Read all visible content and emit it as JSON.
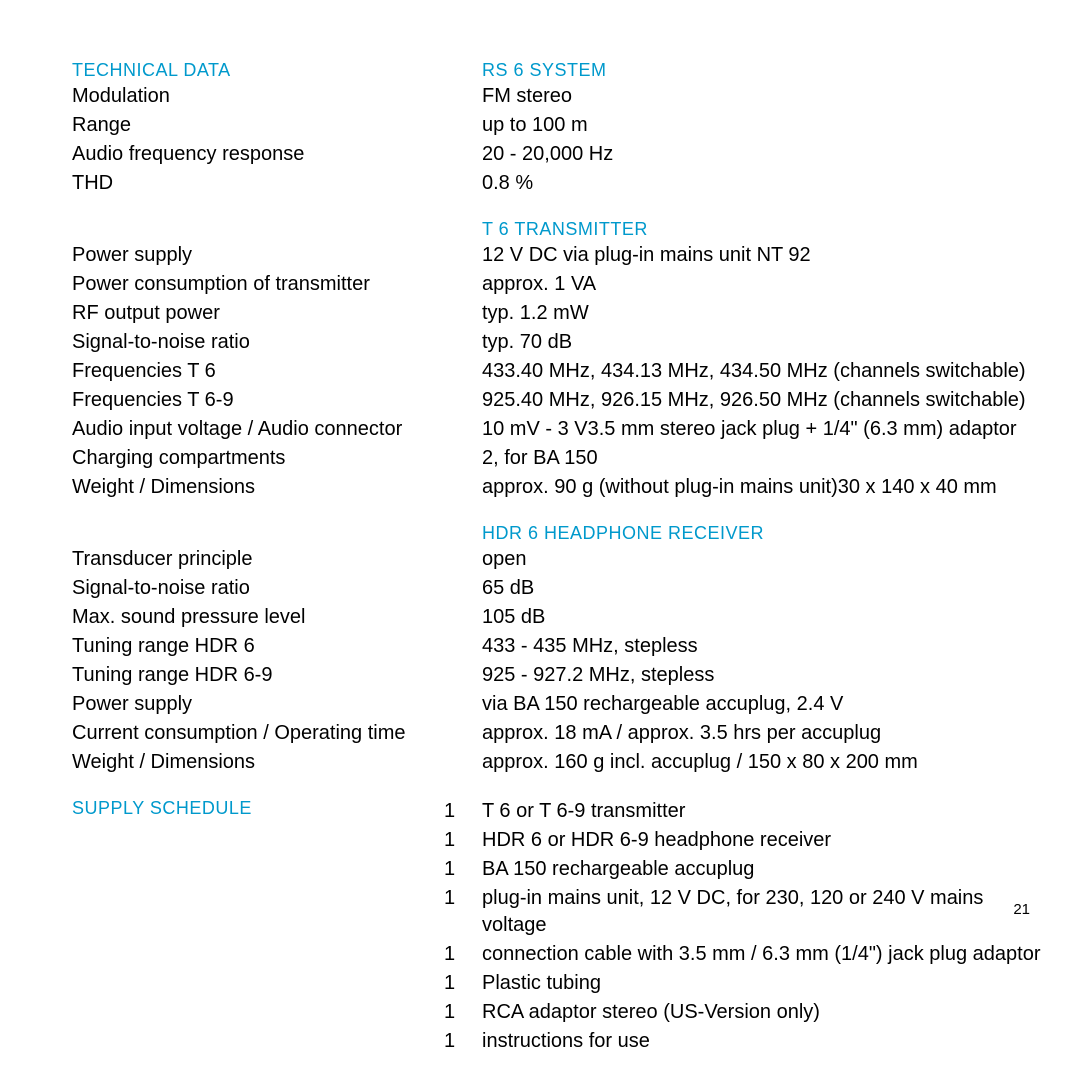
{
  "headings": {
    "technical_data": "TECHNICAL DATA",
    "rs6_system": "RS 6 SYSTEM",
    "t6_transmitter": "T 6 TRANSMITTER",
    "hdr6_receiver": "HDR 6 HEADPHONE RECEIVER",
    "supply_schedule": "SUPPLY SCHEDULE"
  },
  "colors": {
    "heading": "#0099cc",
    "text": "#000000",
    "background": "#ffffff"
  },
  "system": {
    "modulation_label": "Modulation",
    "modulation_value": "FM stereo",
    "range_label": "Range",
    "range_value": " up to 100 m",
    "afr_label": "Audio frequency response",
    "afr_value": " 20 - 20,000 Hz",
    "thd_label": "THD",
    "thd_value": " 0.8 %"
  },
  "transmitter": {
    "power_supply_label": "Power supply",
    "power_supply_value": " 12 V DC via plug-in mains unit NT 92",
    "power_consumption_label": "Power consumption of transmitter",
    "power_consumption_value": " approx. 1 VA",
    "rf_output_label": "RF output power",
    "rf_output_value": " typ. 1.2 mW",
    "snr_label": "Signal-to-noise ratio",
    "snr_value": " typ. 70 dB",
    "freq_t6_label": "Frequencies T 6",
    "freq_t6_value": "433.40 MHz, 434.13 MHz, 434.50 MHz (channels switchable)",
    "freq_t69_label": "Frequencies T 6-9",
    "freq_t69_value": "925.40 MHz, 926.15 MHz, 926.50 MHz (channels switchable)",
    "audio_input_label": "Audio input voltage / Audio connector",
    "audio_input_value": " 10 mV - 3 V3.5 mm stereo jack plug + 1/4\" (6.3 mm) adaptor",
    "charging_label": "Charging compartments",
    "charging_value": " 2, for BA 150",
    "weight_label": "Weight / Dimensions",
    "weight_value": " approx. 90 g (without plug-in mains unit)30 x 140 x 40 mm"
  },
  "receiver": {
    "transducer_label": "Transducer principle",
    "transducer_value": " open",
    "snr_label": "Signal-to-noise ratio",
    "snr_value": " 65 dB",
    "spl_label": "Max. sound pressure level",
    "spl_value": " 105 dB",
    "tuning_hdr6_label": "Tuning range HDR 6",
    "tuning_hdr6_value": " 433 - 435 MHz, stepless",
    "tuning_hdr69_label": "Tuning range HDR 6-9",
    "tuning_hdr69_value": " 925 - 927.2 MHz, stepless",
    "power_supply_label": "Power supply",
    "power_supply_value": " via BA 150 rechargeable accuplug, 2.4 V",
    "current_label": "Current consumption / Operating time",
    "current_value": " approx. 18 mA / approx. 3.5 hrs per accuplug",
    "weight_label": "Weight / Dimensions",
    "weight_value": " approx. 160 g incl. accuplug / 150 x 80 x 200 mm"
  },
  "supply": {
    "items": [
      {
        "qty": "1",
        "text": "T 6 or T 6-9 transmitter"
      },
      {
        "qty": "1",
        "text": "HDR 6 or HDR 6-9 headphone receiver"
      },
      {
        "qty": "1",
        "text": "BA 150 rechargeable accuplug"
      },
      {
        "qty": "1",
        "text": "plug-in mains unit, 12 V DC, for 230, 120 or 240 V mains voltage"
      },
      {
        "qty": "1",
        "text": "connection cable with 3.5 mm / 6.3 mm (1/4\") jack plug adaptor"
      },
      {
        "qty": "1",
        "text": "Plastic tubing"
      },
      {
        "qty": "1",
        "text": "RCA adaptor stereo (US-Version only)"
      },
      {
        "qty": "1",
        "text": "instructions for use"
      }
    ]
  },
  "page_number": "21"
}
